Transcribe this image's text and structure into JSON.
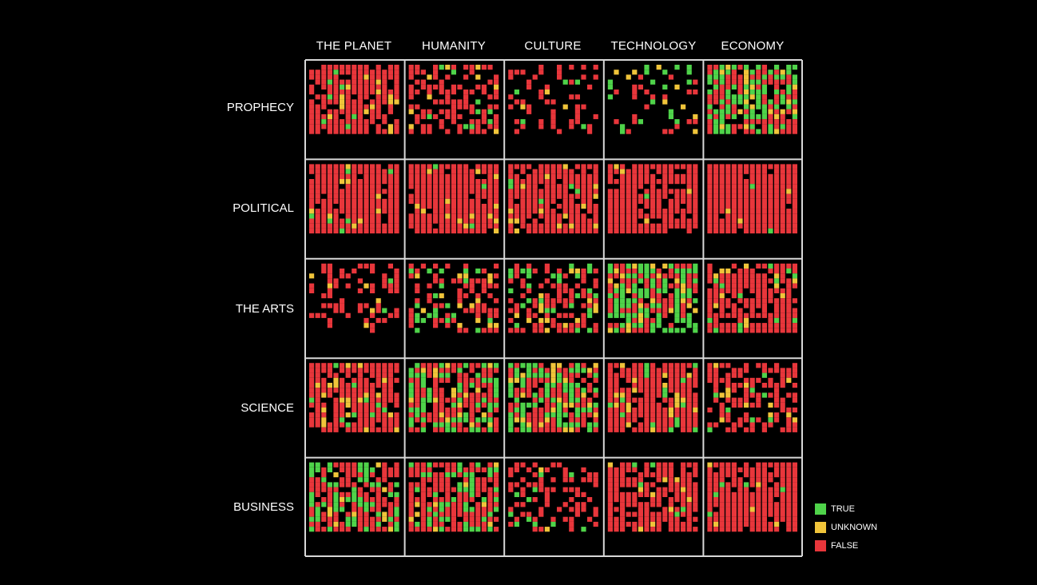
{
  "chart_data": {
    "type": "heatmap",
    "columns": [
      "THE PLANET",
      "HUMANITY",
      "CULTURE",
      "TECHNOLOGY",
      "ECONOMY"
    ],
    "rows": [
      "PROPHECY",
      "POLITICAL",
      "THE ARTS",
      "SCIENCE",
      "BUSINESS"
    ],
    "grid_per_cell": [
      15,
      14
    ],
    "categories": [
      "TRUE",
      "UNKNOWN",
      "FALSE"
    ],
    "colors": {
      "TRUE": "#4fd34a",
      "UNKNOWN": "#f0c43a",
      "FALSE": "#e8363b",
      "background": "#000000",
      "border": "#d8d8d8"
    },
    "cells": [
      [
        {
          "density": 0.82,
          "true": 0.05,
          "unknown": 0.07,
          "seed": 11
        },
        {
          "density": 0.55,
          "true": 0.07,
          "unknown": 0.06,
          "seed": 12
        },
        {
          "density": 0.28,
          "true": 0.12,
          "unknown": 0.04,
          "seed": 13
        },
        {
          "density": 0.22,
          "true": 0.45,
          "unknown": 0.15,
          "seed": 14
        },
        {
          "density": 0.86,
          "true": 0.38,
          "unknown": 0.14,
          "seed": 15
        }
      ],
      [
        {
          "density": 0.94,
          "true": 0.02,
          "unknown": 0.05,
          "seed": 21
        },
        {
          "density": 0.93,
          "true": 0.01,
          "unknown": 0.05,
          "seed": 22
        },
        {
          "density": 0.92,
          "true": 0.02,
          "unknown": 0.06,
          "seed": 23
        },
        {
          "density": 0.88,
          "true": 0.03,
          "unknown": 0.03,
          "seed": 24
        },
        {
          "density": 0.96,
          "true": 0.01,
          "unknown": 0.02,
          "seed": 25
        }
      ],
      [
        {
          "density": 0.38,
          "true": 0.05,
          "unknown": 0.04,
          "seed": 31
        },
        {
          "density": 0.45,
          "true": 0.18,
          "unknown": 0.12,
          "seed": 32
        },
        {
          "density": 0.62,
          "true": 0.28,
          "unknown": 0.08,
          "seed": 33
        },
        {
          "density": 0.9,
          "true": 0.48,
          "unknown": 0.14,
          "seed": 34
        },
        {
          "density": 0.85,
          "true": 0.05,
          "unknown": 0.08,
          "seed": 35
        }
      ],
      [
        {
          "density": 0.86,
          "true": 0.04,
          "unknown": 0.09,
          "seed": 41
        },
        {
          "density": 0.86,
          "true": 0.36,
          "unknown": 0.14,
          "seed": 42
        },
        {
          "density": 0.88,
          "true": 0.42,
          "unknown": 0.12,
          "seed": 43
        },
        {
          "density": 0.9,
          "true": 0.07,
          "unknown": 0.09,
          "seed": 44
        },
        {
          "density": 0.62,
          "true": 0.08,
          "unknown": 0.05,
          "seed": 45
        }
      ],
      [
        {
          "density": 0.85,
          "true": 0.35,
          "unknown": 0.06,
          "seed": 51
        },
        {
          "density": 0.87,
          "true": 0.33,
          "unknown": 0.05,
          "seed": 52
        },
        {
          "density": 0.42,
          "true": 0.1,
          "unknown": 0.04,
          "seed": 53
        },
        {
          "density": 0.83,
          "true": 0.03,
          "unknown": 0.05,
          "seed": 54
        },
        {
          "density": 0.94,
          "true": 0.05,
          "unknown": 0.04,
          "seed": 55
        }
      ]
    ],
    "legend": [
      "TRUE",
      "UNKNOWN",
      "FALSE"
    ],
    "legend_position": "bottom-right"
  }
}
